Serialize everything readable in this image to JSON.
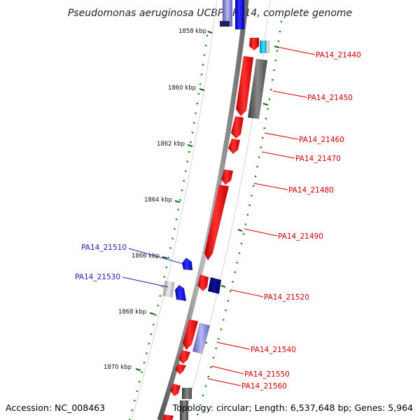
{
  "title": "Pseudomonas aeruginosa UCBPP-PA14, complete genome",
  "footer": {
    "accession": "Accession: NC_008463",
    "topology": "Topology: circular; Length: 6,537,648 bp; Genes: 5,964"
  },
  "scale_labels": [
    "1858 kbp",
    "1860 kbp",
    "1862 kbp",
    "1864 kbp",
    "1866 kbp",
    "1868 kbp",
    "1870 kbp"
  ],
  "gene_labels_right": [
    "PA14_21440",
    "PA14_21450",
    "PA14_21460",
    "PA14_21470",
    "PA14_21480",
    "PA14_21490",
    "PA14_21520",
    "PA14_21540",
    "PA14_21550",
    "PA14_21560"
  ],
  "gene_labels_left": [
    "PA14_21510",
    "PA14_21530"
  ],
  "colors": {
    "forward_gene": "#ff0000",
    "reverse_gene": "#0000ff",
    "gene_label_right": "#d40000",
    "gene_label_left": "#1a23b8",
    "tick": "#0a8a0a",
    "backbone": "#7a7a7a"
  }
}
